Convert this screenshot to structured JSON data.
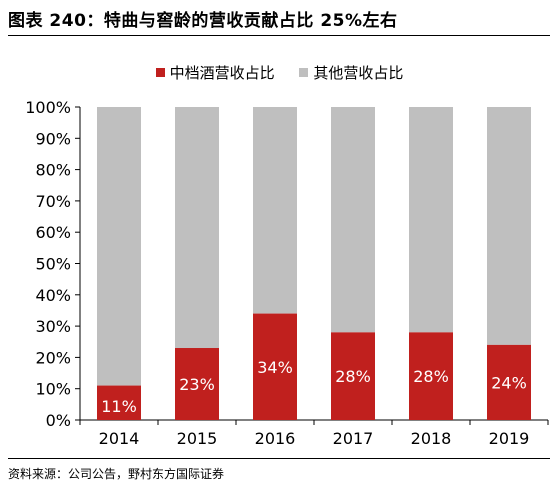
{
  "header": {
    "title": "图表 240：特曲与窖龄的营收贡献占比 25%左右"
  },
  "footer": {
    "source": "资料来源：公司公告，野村东方国际证券"
  },
  "colors": {
    "primary": "#c0201e",
    "secondary": "#bfbfbf",
    "label": "#ffffff"
  },
  "chart_data": {
    "type": "bar",
    "stacked": true,
    "title": "",
    "xlabel": "",
    "ylabel": "",
    "categories": [
      "2014",
      "2015",
      "2016",
      "2017",
      "2018",
      "2019"
    ],
    "ylim": [
      0,
      100
    ],
    "yticks": [
      "0%",
      "10%",
      "20%",
      "30%",
      "40%",
      "50%",
      "60%",
      "70%",
      "80%",
      "90%",
      "100%"
    ],
    "grid": false,
    "legend_position": "top",
    "series": [
      {
        "name": "中档酒营收占比",
        "values": [
          11,
          23,
          34,
          28,
          28,
          24
        ],
        "labels": [
          "11%",
          "23%",
          "34%",
          "28%",
          "28%",
          "24%"
        ]
      },
      {
        "name": "其他营收占比",
        "values": [
          89,
          77,
          66,
          72,
          72,
          76
        ]
      }
    ]
  }
}
